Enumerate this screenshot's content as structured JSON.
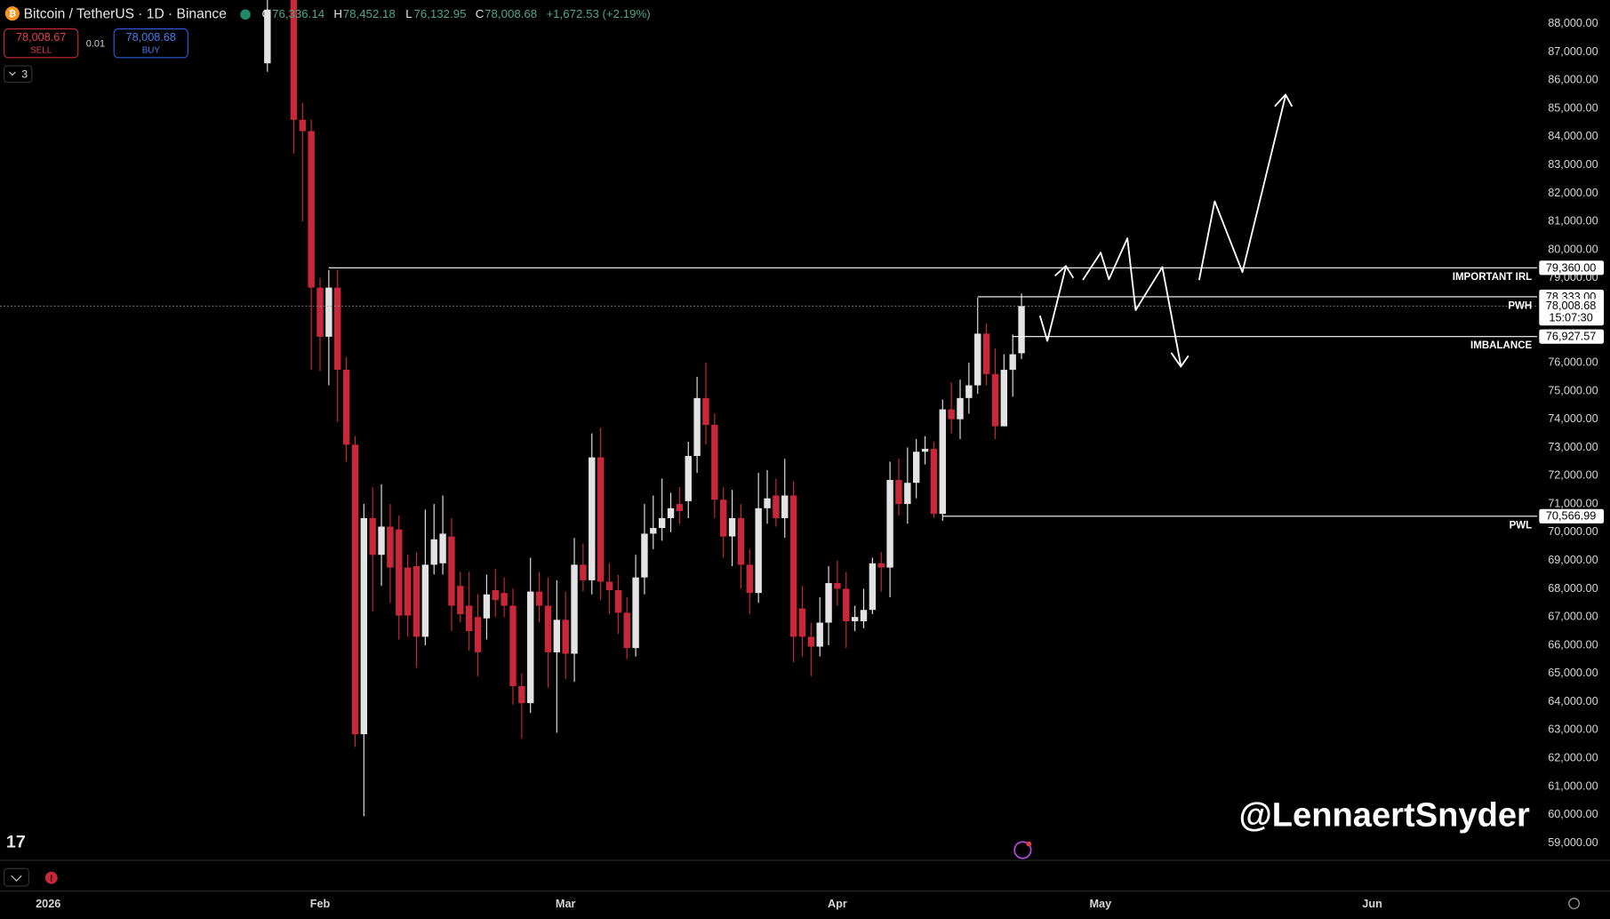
{
  "header": {
    "symbol": "Bitcoin / TetherUS · 1D · Binance",
    "open_label": "O",
    "open": "76,336.14",
    "high_label": "H",
    "high": "78,452.18",
    "low_label": "L",
    "low": "76,132.95",
    "close_label": "C",
    "close": "78,008.68",
    "change": "+1,672.53 (+2.19%)",
    "sell_price": "78,008.67",
    "sell": "SELL",
    "quantity": "0.01",
    "buy_price": "78,008.68",
    "buy": "BUY",
    "indicators_count": "3"
  },
  "watermark": "@LennaertSnyder",
  "chart_data": {
    "type": "candlestick",
    "up_color": "#e3e3e3",
    "down_color": "#c9283a",
    "grid": false,
    "xlim": [
      -5.5,
      169.8
    ],
    "ylim": [
      58385,
      88836
    ],
    "xticks": [
      {
        "value": 0,
        "label": "2026"
      },
      {
        "value": 31,
        "label": "Feb"
      },
      {
        "value": 59,
        "label": "Mar"
      },
      {
        "value": 90,
        "label": "Apr"
      },
      {
        "value": 120,
        "label": "May"
      },
      {
        "value": 151,
        "label": "Jun"
      }
    ],
    "yticks": [
      {
        "value": 59000,
        "label": "59,000.00"
      },
      {
        "value": 60000,
        "label": "60,000.00"
      },
      {
        "value": 61000,
        "label": "61,000.00"
      },
      {
        "value": 62000,
        "label": "62,000.00"
      },
      {
        "value": 63000,
        "label": "63,000.00"
      },
      {
        "value": 64000,
        "label": "64,000.00"
      },
      {
        "value": 65000,
        "label": "65,000.00"
      },
      {
        "value": 66000,
        "label": "66,000.00"
      },
      {
        "value": 67000,
        "label": "67,000.00"
      },
      {
        "value": 68000,
        "label": "68,000.00"
      },
      {
        "value": 69000,
        "label": "69,000.00"
      },
      {
        "value": 70000,
        "label": "70,000.00"
      },
      {
        "value": 71000,
        "label": "71,000.00"
      },
      {
        "value": 72000,
        "label": "72,000.00"
      },
      {
        "value": 73000,
        "label": "73,000.00"
      },
      {
        "value": 74000,
        "label": "74,000.00"
      },
      {
        "value": 75000,
        "label": "75,000.00"
      },
      {
        "value": 76000,
        "label": "76,000.00"
      },
      {
        "value": 77000,
        "label": "77,000.00"
      },
      {
        "value": 78000,
        "label": "78,000.00"
      },
      {
        "value": 79000,
        "label": "79,000.00"
      },
      {
        "value": 80000,
        "label": "80,000.00"
      },
      {
        "value": 81000,
        "label": "81,000.00"
      },
      {
        "value": 82000,
        "label": "82,000.00"
      },
      {
        "value": 83000,
        "label": "83,000.00"
      },
      {
        "value": 84000,
        "label": "84,000.00"
      },
      {
        "value": 85000,
        "label": "85,000.00"
      },
      {
        "value": 86000,
        "label": "86,000.00"
      },
      {
        "value": 87000,
        "label": "87,000.00"
      },
      {
        "value": 88000,
        "label": "88,000.00"
      }
    ],
    "x": [
      25,
      28,
      29,
      30,
      31,
      32,
      33,
      34,
      35,
      36,
      37,
      38,
      39,
      40,
      41,
      42,
      43,
      44,
      45,
      46,
      47,
      48,
      49,
      50,
      51,
      52,
      53,
      54,
      55,
      56,
      57,
      58,
      59,
      60,
      61,
      62,
      63,
      64,
      65,
      66,
      67,
      68,
      69,
      70,
      71,
      72,
      73,
      74,
      75,
      76,
      77,
      78,
      79,
      80,
      81,
      82,
      83,
      84,
      85,
      86,
      87,
      88,
      89,
      90,
      91,
      92,
      93,
      94,
      95,
      96,
      97,
      98,
      99,
      100,
      101,
      102,
      103,
      104,
      105,
      106,
      107,
      108,
      109,
      110,
      111
    ],
    "open": [
      86600,
      89000,
      84600,
      84200,
      78660,
      76920,
      78660,
      75750,
      73100,
      62850,
      70500,
      69200,
      70200,
      70100,
      68750,
      68800,
      66300,
      68850,
      68900,
      69850,
      68100,
      67400,
      67000,
      66950,
      67950,
      67850,
      67400,
      64550,
      63950,
      67900,
      67400,
      65750,
      66900,
      65700,
      68850,
      68300,
      72650,
      68250,
      67950,
      67150,
      65900,
      68400,
      69950,
      70150,
      70500,
      71000,
      71100,
      72700,
      74750,
      73800,
      71150,
      69850,
      70500,
      68850,
      67850,
      70850,
      71300,
      70500,
      71300,
      67300,
      66300,
      65950,
      66800,
      68200,
      68000,
      66850,
      66850,
      67250,
      68900,
      68750,
      71850,
      71000,
      71750,
      72850,
      72950,
      70650,
      74350,
      74000,
      74750,
      75200,
      77030,
      75600,
      73750,
      75750,
      76336.14
    ],
    "high": [
      89000,
      89500,
      85200,
      84600,
      79000,
      79280,
      79300,
      76200,
      73400,
      71000,
      71600,
      71700,
      71000,
      70600,
      69200,
      69300,
      70800,
      71000,
      71300,
      70500,
      68600,
      68600,
      67800,
      68500,
      68700,
      68400,
      68000,
      65000,
      69100,
      68600,
      68400,
      68300,
      67900,
      69800,
      69600,
      73500,
      73700,
      68900,
      68500,
      67700,
      69200,
      71000,
      71300,
      71900,
      71400,
      71600,
      73200,
      75500,
      76000,
      74200,
      71600,
      71500,
      71000,
      69400,
      72100,
      72200,
      71900,
      72600,
      71800,
      68100,
      66800,
      67700,
      68800,
      69000,
      68600,
      67400,
      68000,
      69100,
      69300,
      72500,
      72600,
      73000,
      73300,
      73400,
      73200,
      74700,
      75300,
      75400,
      76000,
      78300,
      77400,
      76500,
      76300,
      77000,
      78452.18
    ],
    "low": [
      86300,
      83400,
      81000,
      75750,
      75700,
      75200,
      73900,
      72500,
      62400,
      59950,
      67200,
      68100,
      67500,
      66200,
      66300,
      65200,
      66000,
      68500,
      68500,
      66500,
      66800,
      65800,
      64900,
      66200,
      67000,
      67000,
      63900,
      62700,
      63600,
      66800,
      64500,
      62900,
      64800,
      64700,
      67900,
      67800,
      67600,
      67100,
      66400,
      65500,
      65600,
      67800,
      69400,
      69700,
      70000,
      70300,
      70500,
      72100,
      73100,
      70500,
      69100,
      68800,
      68000,
      67100,
      67500,
      70300,
      70200,
      69800,
      65400,
      65600,
      64900,
      65600,
      66000,
      67400,
      65900,
      66500,
      66600,
      67100,
      67900,
      67700,
      70600,
      70300,
      71200,
      72400,
      70500,
      70400,
      73500,
      73300,
      74200,
      74900,
      75200,
      73300,
      73750,
      74800,
      76132.95
    ],
    "close": [
      88500,
      84600,
      84200,
      78660,
      76920,
      78660,
      75750,
      73100,
      62850,
      70500,
      69200,
      70200,
      68750,
      67050,
      67050,
      66300,
      68850,
      69750,
      69950,
      67400,
      67100,
      66500,
      65750,
      67800,
      67600,
      67400,
      64550,
      63950,
      67900,
      67400,
      65750,
      66900,
      65700,
      68850,
      68300,
      72650,
      68250,
      67950,
      67150,
      65900,
      68400,
      69950,
      70150,
      70500,
      70850,
      70750,
      72700,
      74750,
      73800,
      71150,
      69850,
      70500,
      68850,
      67850,
      70850,
      71200,
      70500,
      71300,
      66300,
      66300,
      65950,
      66800,
      68200,
      68000,
      66850,
      67000,
      67250,
      68900,
      68750,
      71850,
      71000,
      71750,
      72850,
      72950,
      70650,
      74350,
      74000,
      74750,
      75200,
      77030,
      75600,
      73750,
      75750,
      76300,
      78008.68
    ],
    "levels": [
      {
        "name": "IMPORTANT IRL",
        "value": 79360,
        "label": "79,360.00",
        "start": 32
      },
      {
        "name": "PWH",
        "value": 78333,
        "label": "78,333.00",
        "start": 106
      },
      {
        "name": "IMBALANCE",
        "value": 76927.57,
        "label": "76,927.57",
        "start": 110
      },
      {
        "name": "PWL",
        "value": 70566.99,
        "label": "70,566.99",
        "start": 102
      }
    ],
    "current_price": {
      "value": 78008.68,
      "label": "78,008.68",
      "countdown": "15:07:30"
    }
  }
}
